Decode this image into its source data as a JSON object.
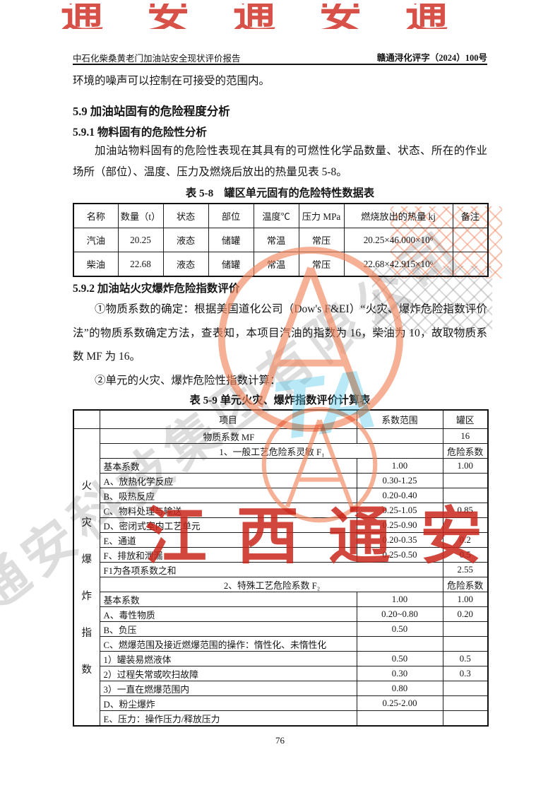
{
  "header": {
    "left": "中石化柴桑黄老门加油站安全现状评价报告",
    "right": "赣通浔化评字（2024）100号"
  },
  "body": {
    "intro": "环境的噪声可以控制在可接受的范围内。",
    "heading_59": "5.9 加油站固有的危险程度分析",
    "heading_591": "5.9.1 物料固有的危险性分析",
    "para_591": "加油站物料固有的危险性表现在其具有的可燃性化学品数量、状态、所在的作业场所（部位）、温度、压力及燃烧后放出的热量见表 5-8。",
    "heading_592": "5.9.2 加油站火灾爆炸危险指数评价",
    "para_592_1": "①物质系数的确定：根据美国道化公司（Dow's F&EI）“火灾、爆炸危险指数评价法”的物质系数确定方法，查表知，本项目汽油的指数为 16，柴油为 10，故取物质系数 MF 为 16。",
    "para_592_2": "②单元的火灾、爆炸危险性指数计算："
  },
  "table58": {
    "caption": "表 5-8　罐区单元固有的危险特性数据表",
    "headers": [
      "名称",
      "数量（t）",
      "状态",
      "部位",
      "温度℃",
      "压力 MPa",
      "燃烧放出的热量 kj",
      "备注"
    ],
    "rows": [
      [
        "汽油",
        "20.25",
        "液态",
        "储罐",
        "常温",
        "常压",
        "20.25×46.000×10⁶",
        ""
      ],
      [
        "柴油",
        "22.68",
        "液态",
        "储罐",
        "常温",
        "常压",
        "22.68×42.915×10⁶",
        ""
      ]
    ]
  },
  "table59": {
    "caption": "表 5-9 单元火灾、爆炸指数评价计算表",
    "side_label": "火灾爆炸指数",
    "headers": [
      "项目",
      "系数范围",
      "罐区"
    ],
    "rows": [
      {
        "label": "物质系数 MF",
        "range": "",
        "tank": "16",
        "align": "center"
      },
      {
        "label": "1、一般工艺危险系灵敏 F₁",
        "tank": "危险系数",
        "span": true,
        "align": "center"
      },
      {
        "label": "基本系数",
        "range": "1.00",
        "tank": "1.00"
      },
      {
        "label": "A、放热化学反应",
        "range": "0.30-1.25",
        "tank": ""
      },
      {
        "label": "B、吸热反应",
        "range": "0.20-0.40",
        "tank": ""
      },
      {
        "label": "C、物料处理与输送",
        "range": "0.25-1.05",
        "tank": "0.85"
      },
      {
        "label": "D、密闭式室内工艺单元",
        "range": "0.25-0.90",
        "tank": ""
      },
      {
        "label": "E、通道",
        "range": "0.20-0.35",
        "tank": "0.2"
      },
      {
        "label": "F、排放和泄漏",
        "range": "0.25-0.50",
        "tank": "0.5"
      },
      {
        "label": "F1为各项系数之和",
        "tank": "2.55",
        "span": true
      },
      {
        "label": "2、特殊工艺危险系数 F₂",
        "tank": "危险系数",
        "span": true,
        "align": "center"
      },
      {
        "label": "基本系数",
        "range": "1.00",
        "tank": "1.00"
      },
      {
        "label": "A、毒性物质",
        "range": "0.20~0.80",
        "tank": "0.20"
      },
      {
        "label": "B、负压",
        "range": "0.50",
        "tank": ""
      },
      {
        "label": "C、燃爆范围及接近燃爆范围的操作：惰性化、未惰性化",
        "range": "",
        "tank": ""
      },
      {
        "label": "1）罐装易燃液体",
        "range": "0.50",
        "tank": "0.5"
      },
      {
        "label": "2）过程失常或吹扫故障",
        "range": "0.30",
        "tank": "0.3"
      },
      {
        "label": "3）一直在燃爆范围内",
        "range": "0.80",
        "tank": ""
      },
      {
        "label": "D、粉尘爆炸",
        "range": "0.25-2.00",
        "tank": ""
      },
      {
        "label": "E、压力：操作压力/释放压力",
        "range": "",
        "tank": ""
      }
    ]
  },
  "watermark": {
    "red_text": "江西通安",
    "red_top_fragment": "通安通安通",
    "gray_text": "通安科技集团有限公司",
    "cyan_text": "TA",
    "colors": {
      "red": "#c92317",
      "salmon": "#f1855e",
      "gray": "#7d7d7d",
      "cyan": "#48c4e8"
    }
  },
  "page": {
    "number": "76"
  }
}
